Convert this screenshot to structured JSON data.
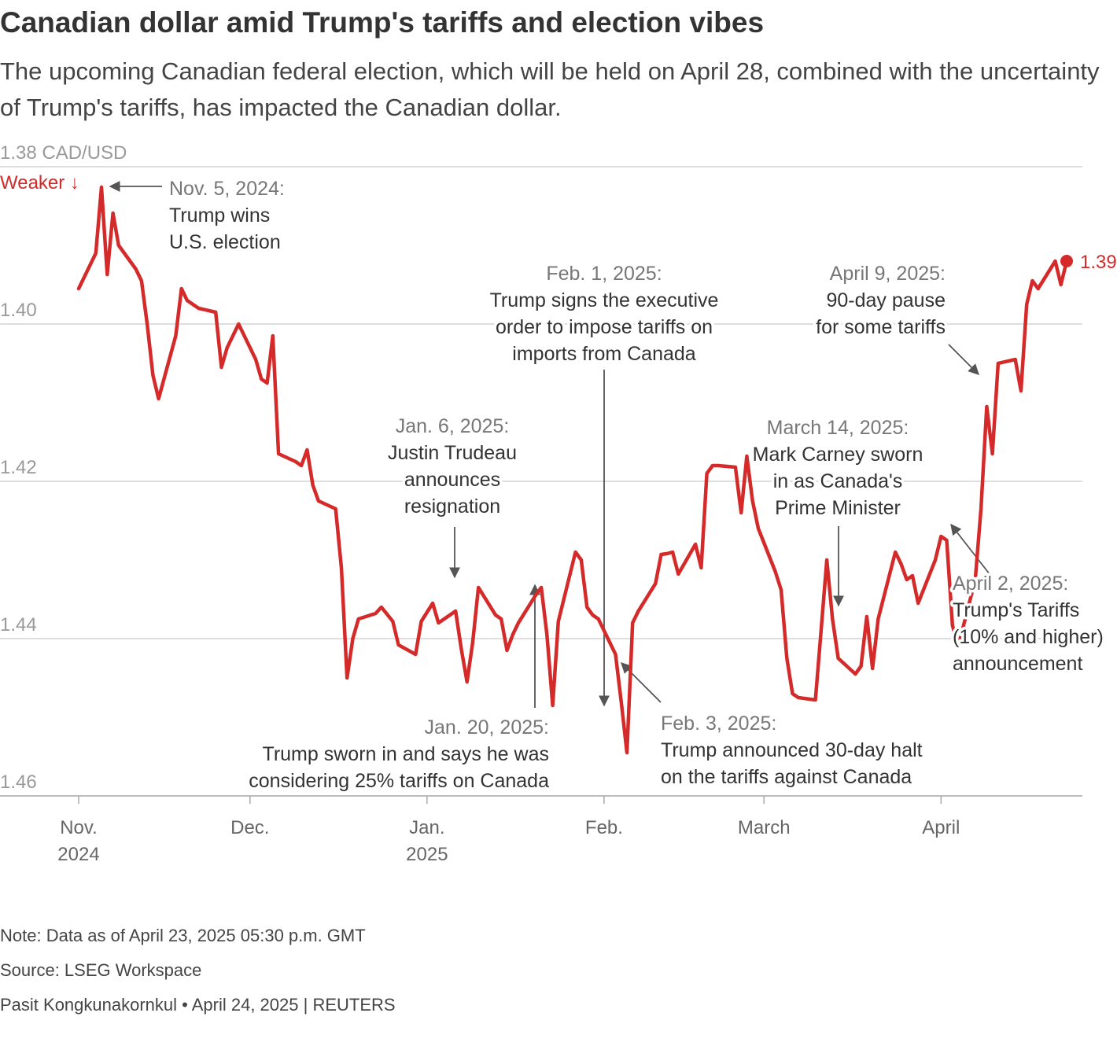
{
  "header": {
    "title": "Canadian dollar amid Trump's tariffs and election vibes",
    "subtitle": "The upcoming Canadian federal election, which will be held on April 28, combined with the uncertainty of Trump's tariffs, has impacted the Canadian dollar."
  },
  "colors": {
    "line": "#d42a2a",
    "grid": "#cccccc",
    "annotation": "#555555",
    "axis_text": "#999999"
  },
  "chart_data": {
    "type": "line",
    "title": "Canadian dollar amid Trump's tariffs and election vibes",
    "ylabel": "CAD/USD",
    "y_unit": "CAD/USD",
    "y_inverted": true,
    "direction_label": "Weaker ↓",
    "ylim": [
      1.38,
      1.46
    ],
    "yticks": [
      {
        "value": 1.38,
        "label": "1.38 CAD/USD"
      },
      {
        "value": 1.4,
        "label": "1.40"
      },
      {
        "value": 1.42,
        "label": "1.42"
      },
      {
        "value": 1.44,
        "label": "1.44"
      },
      {
        "value": 1.46,
        "label": "1.46"
      }
    ],
    "xlim": [
      "2024-11-01",
      "2025-04-23"
    ],
    "xticks": [
      {
        "date": "2024-11-01",
        "label": "Nov.",
        "sublabel": "2024"
      },
      {
        "date": "2024-12-01",
        "label": "Dec.",
        "sublabel": ""
      },
      {
        "date": "2025-01-01",
        "label": "Jan.",
        "sublabel": "2025"
      },
      {
        "date": "2025-02-01",
        "label": "Feb.",
        "sublabel": ""
      },
      {
        "date": "2025-03-01",
        "label": "March",
        "sublabel": ""
      },
      {
        "date": "2025-04-01",
        "label": "April",
        "sublabel": ""
      }
    ],
    "grid": true,
    "last_value_label": "1.39",
    "series": [
      {
        "points": [
          [
            "2024-11-01",
            1.3955
          ],
          [
            "2024-11-04",
            1.391
          ],
          [
            "2024-11-05",
            1.3826
          ],
          [
            "2024-11-06",
            1.3937
          ],
          [
            "2024-11-07",
            1.3859
          ],
          [
            "2024-11-08",
            1.39
          ],
          [
            "2024-11-11",
            1.393
          ],
          [
            "2024-11-12",
            1.3945
          ],
          [
            "2024-11-13",
            1.4
          ],
          [
            "2024-11-14",
            1.4065
          ],
          [
            "2024-11-15",
            1.4095
          ],
          [
            "2024-11-18",
            1.4015
          ],
          [
            "2024-11-19",
            1.3955
          ],
          [
            "2024-11-20",
            1.397
          ],
          [
            "2024-11-21",
            1.3975
          ],
          [
            "2024-11-22",
            1.398
          ],
          [
            "2024-11-25",
            1.3985
          ],
          [
            "2024-11-26",
            1.4055
          ],
          [
            "2024-11-27",
            1.403
          ],
          [
            "2024-11-29",
            1.4
          ],
          [
            "2024-12-02",
            1.4045
          ],
          [
            "2024-12-03",
            1.407
          ],
          [
            "2024-12-04",
            1.4075
          ],
          [
            "2024-12-05",
            1.4015
          ],
          [
            "2024-12-06",
            1.4165
          ],
          [
            "2024-12-09",
            1.4175
          ],
          [
            "2024-12-10",
            1.418
          ],
          [
            "2024-12-11",
            1.416
          ],
          [
            "2024-12-12",
            1.4205
          ],
          [
            "2024-12-13",
            1.4225
          ],
          [
            "2024-12-16",
            1.4235
          ],
          [
            "2024-12-17",
            1.431
          ],
          [
            "2024-12-18",
            1.445
          ],
          [
            "2024-12-19",
            1.44
          ],
          [
            "2024-12-20",
            1.4375
          ],
          [
            "2024-12-23",
            1.4368
          ],
          [
            "2024-12-24",
            1.436
          ],
          [
            "2024-12-26",
            1.4378
          ],
          [
            "2024-12-27",
            1.4408
          ],
          [
            "2024-12-30",
            1.442
          ],
          [
            "2024-12-31",
            1.4378
          ],
          [
            "2025-01-02",
            1.4355
          ],
          [
            "2025-01-03",
            1.438
          ],
          [
            "2025-01-06",
            1.4365
          ],
          [
            "2025-01-07",
            1.4413
          ],
          [
            "2025-01-08",
            1.4455
          ],
          [
            "2025-01-09",
            1.4405
          ],
          [
            "2025-01-10",
            1.4335
          ],
          [
            "2025-01-13",
            1.437
          ],
          [
            "2025-01-14",
            1.4375
          ],
          [
            "2025-01-15",
            1.4415
          ],
          [
            "2025-01-16",
            1.4395
          ],
          [
            "2025-01-17",
            1.438
          ],
          [
            "2025-01-20",
            1.4345
          ],
          [
            "2025-01-21",
            1.4335
          ],
          [
            "2025-01-22",
            1.4395
          ],
          [
            "2025-01-23",
            1.4485
          ],
          [
            "2025-01-24",
            1.4378
          ],
          [
            "2025-01-27",
            1.429
          ],
          [
            "2025-01-28",
            1.43
          ],
          [
            "2025-01-29",
            1.436
          ],
          [
            "2025-01-30",
            1.437
          ],
          [
            "2025-01-31",
            1.4375
          ],
          [
            "2025-02-03",
            1.442
          ],
          [
            "2025-02-04",
            1.448
          ],
          [
            "2025-02-05",
            1.4545
          ],
          [
            "2025-02-06",
            1.438
          ],
          [
            "2025-02-07",
            1.4365
          ],
          [
            "2025-02-10",
            1.433
          ],
          [
            "2025-02-11",
            1.4293
          ],
          [
            "2025-02-12",
            1.4292
          ],
          [
            "2025-02-13",
            1.429
          ],
          [
            "2025-02-14",
            1.4318
          ],
          [
            "2025-02-17",
            1.428
          ],
          [
            "2025-02-18",
            1.431
          ],
          [
            "2025-02-19",
            1.419
          ],
          [
            "2025-02-20",
            1.418
          ],
          [
            "2025-02-21",
            1.418
          ],
          [
            "2025-02-24",
            1.4182
          ],
          [
            "2025-02-25",
            1.424
          ],
          [
            "2025-02-26",
            1.4168
          ],
          [
            "2025-02-27",
            1.4225
          ],
          [
            "2025-02-28",
            1.426
          ],
          [
            "2025-03-03",
            1.4315
          ],
          [
            "2025-03-04",
            1.4338
          ],
          [
            "2025-03-05",
            1.4425
          ],
          [
            "2025-03-06",
            1.447
          ],
          [
            "2025-03-07",
            1.4475
          ],
          [
            "2025-03-10",
            1.4478
          ],
          [
            "2025-03-11",
            1.439
          ],
          [
            "2025-03-12",
            1.43
          ],
          [
            "2025-03-13",
            1.4375
          ],
          [
            "2025-03-14",
            1.4425
          ],
          [
            "2025-03-17",
            1.4445
          ],
          [
            "2025-03-18",
            1.4435
          ],
          [
            "2025-03-19",
            1.4372
          ],
          [
            "2025-03-20",
            1.4438
          ],
          [
            "2025-03-21",
            1.4375
          ],
          [
            "2025-03-24",
            1.429
          ],
          [
            "2025-03-25",
            1.4305
          ],
          [
            "2025-03-26",
            1.4325
          ],
          [
            "2025-03-27",
            1.432
          ],
          [
            "2025-03-28",
            1.4355
          ],
          [
            "2025-03-31",
            1.43
          ],
          [
            "2025-04-01",
            1.427
          ],
          [
            "2025-04-02",
            1.4275
          ],
          [
            "2025-04-03",
            1.4383
          ],
          [
            "2025-04-04",
            1.441
          ],
          [
            "2025-04-07",
            1.4325
          ],
          [
            "2025-04-08",
            1.4235
          ],
          [
            "2025-04-09",
            1.4105
          ],
          [
            "2025-04-10",
            1.4165
          ],
          [
            "2025-04-11",
            1.405
          ],
          [
            "2025-04-14",
            1.4045
          ],
          [
            "2025-04-15",
            1.4085
          ],
          [
            "2025-04-16",
            1.3975
          ],
          [
            "2025-04-17",
            1.3945
          ],
          [
            "2025-04-18",
            1.3955
          ],
          [
            "2025-04-21",
            1.392
          ],
          [
            "2025-04-22",
            1.395
          ],
          [
            "2025-04-23",
            1.392
          ]
        ]
      }
    ],
    "annotations": [
      {
        "id": "nov5",
        "date": "Nov. 5, 2024:",
        "text": [
          "Trump wins",
          "U.S. election"
        ]
      },
      {
        "id": "feb1",
        "date": "Feb. 1, 2025:",
        "text": [
          "Trump signs the executive",
          "order to impose tariffs on",
          "imports from Canada"
        ]
      },
      {
        "id": "apr9",
        "date": "April 9, 2025:",
        "text": [
          "90-day pause",
          "for some tariffs"
        ]
      },
      {
        "id": "jan6",
        "date": "Jan. 6, 2025:",
        "text": [
          "Justin Trudeau",
          "announces",
          "resignation"
        ]
      },
      {
        "id": "mar14",
        "date": "March 14, 2025:",
        "text": [
          "Mark Carney sworn",
          "in as Canada's",
          "Prime Minister"
        ]
      },
      {
        "id": "apr2",
        "date": "April 2, 2025:",
        "text": [
          "Trump's Tariffs",
          "(10% and higher)",
          "announcement"
        ]
      },
      {
        "id": "jan20",
        "date": "Jan. 20, 2025:",
        "text": [
          "Trump sworn in and says he was",
          "considering 25% tariffs on Canada"
        ]
      },
      {
        "id": "feb3",
        "date": "Feb. 3, 2025:",
        "text": [
          "Trump announced 30-day halt",
          "on the tariffs against Canada"
        ]
      }
    ]
  },
  "footer": {
    "note": "Note: Data as of April 23, 2025 05:30 p.m. GMT",
    "source": "Source: LSEG Workspace",
    "credit": "Pasit Kongkunakornkul • April 24, 2025 | REUTERS"
  }
}
